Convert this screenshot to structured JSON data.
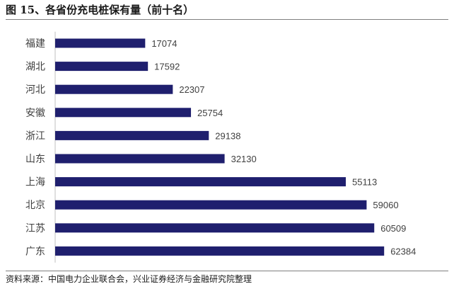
{
  "figure": {
    "title": "图 15、各省份充电桩保有量（前十名）",
    "source": "资料来源：中国电力企业联合会，兴业证券经济与金融研究院整理"
  },
  "chart_data": {
    "type": "bar",
    "orientation": "horizontal",
    "categories": [
      "福建",
      "湖北",
      "河北",
      "安徽",
      "浙江",
      "山东",
      "上海",
      "北京",
      "江苏",
      "广东"
    ],
    "values": [
      17074,
      17592,
      22307,
      25754,
      29138,
      32130,
      55113,
      59060,
      60509,
      62384
    ],
    "title": "",
    "xlabel": "",
    "ylabel": "",
    "xlim": [
      0,
      70000
    ],
    "bar_color": "#1f1f6e",
    "grid": false,
    "data_labels": true,
    "legend": false
  }
}
